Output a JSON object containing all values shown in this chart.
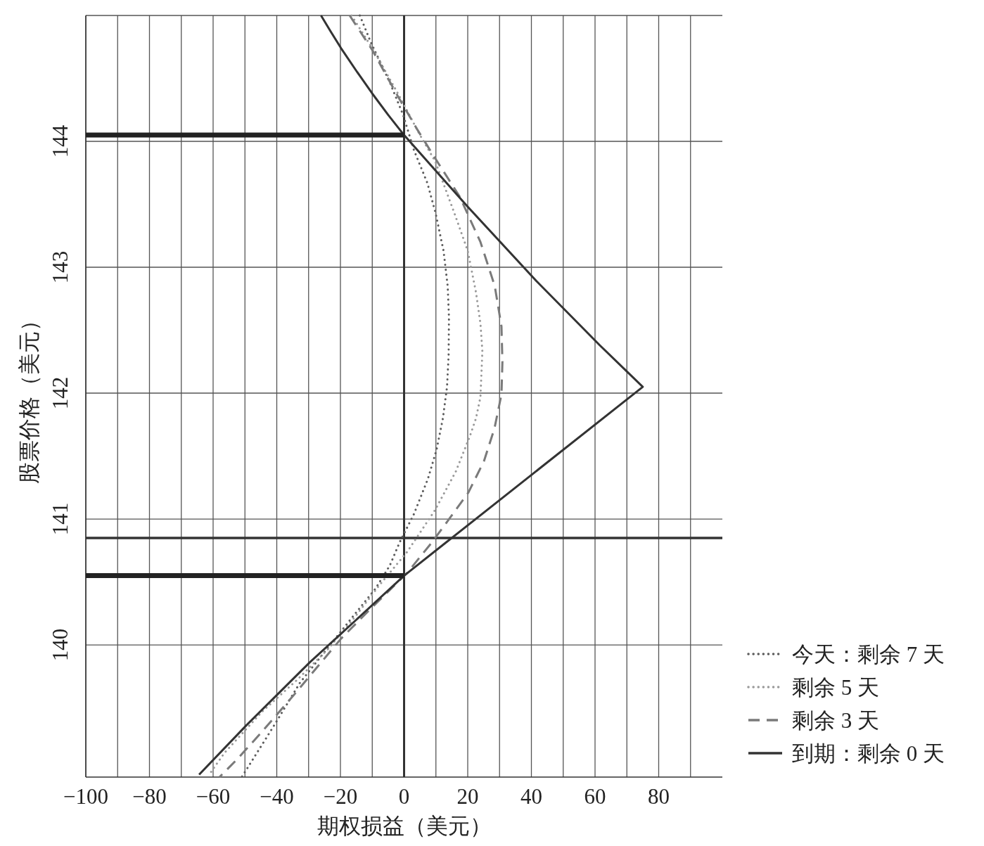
{
  "chart_data": {
    "type": "line",
    "xlabel": "期权损益（美元）",
    "ylabel": "股票价格（美元）",
    "xlim": [
      -100,
      100
    ],
    "ylim": [
      138.95,
      145
    ],
    "xticks": [
      -100,
      {
        "value": -90,
        "label": null
      },
      -80,
      {
        "value": -70,
        "label": null
      },
      -60,
      {
        "value": -50,
        "label": null
      },
      -40,
      {
        "value": -30,
        "label": null
      },
      -20,
      {
        "value": -10,
        "label": null
      },
      0,
      {
        "value": 10,
        "label": null
      },
      20,
      {
        "value": 30,
        "label": null
      },
      40,
      {
        "value": 50,
        "label": null
      },
      60,
      {
        "value": 70,
        "label": null
      },
      80,
      {
        "value": 90,
        "label": null
      }
    ],
    "yticks": [
      140,
      141,
      142,
      143,
      144
    ],
    "grid": true,
    "legend": "bottom right",
    "ref_lines": [
      {
        "axis": "x",
        "value": 0,
        "color": "#333333"
      },
      {
        "axis": "y",
        "value": 140.85,
        "color": "#333333"
      }
    ],
    "series": [
      {
        "name": "今天：剩余 7 天",
        "color": "#5c5c5c",
        "line_style": "dotted",
        "x": [
          -13.9,
          -10.5,
          -4.5,
          -0.3,
          3.1,
          7.3,
          9.9,
          12.4,
          13.7,
          14.1,
          14,
          13.5,
          12.2,
          10.2,
          7.5,
          3.1,
          -1.3,
          -4.5,
          -8.9,
          -16.9,
          -24.8,
          -32.7,
          -40.6,
          -51
        ],
        "values": [
          145,
          144.79,
          144.47,
          144.21,
          143.93,
          143.67,
          143.43,
          143.13,
          142.85,
          142.6,
          142.3,
          142.05,
          141.8,
          141.55,
          141.32,
          141.04,
          140.82,
          140.63,
          140.45,
          140.2,
          139.95,
          139.7,
          139.37,
          138.95
        ]
      },
      {
        "name": "剩余 5 天",
        "color": "#9a9a9a",
        "line_style": "dotted",
        "x": [
          -16.5,
          -9.5,
          -1.5,
          5,
          9.8,
          15.8,
          20,
          22.6,
          24,
          24.6,
          24,
          22.6,
          20.7,
          16.3,
          9.7,
          4.7,
          1,
          -7.9,
          -15.5,
          -23.8,
          -33.7,
          -44.6,
          -56.5,
          -61.5
        ],
        "values": [
          145,
          144.72,
          144.36,
          144.05,
          143.84,
          143.43,
          143.13,
          142.8,
          142.55,
          142.33,
          141.97,
          141.8,
          141.66,
          141.38,
          141.07,
          140.88,
          140.74,
          140.47,
          140.22,
          139.97,
          139.72,
          139.47,
          139.14,
          138.96
        ]
      },
      {
        "name": "剩余 3 天",
        "color": "#7a7a7a",
        "line_style": "dashed",
        "x": [
          -17.1,
          -10.1,
          -2,
          4,
          9.9,
          17.5,
          24,
          28.5,
          30.6,
          30.9,
          30.6,
          28.4,
          25.1,
          20.2,
          13,
          8.6,
          0.9,
          -10,
          -19.8,
          -34.7,
          -45,
          -52.5,
          -58
        ],
        "values": [
          145,
          144.73,
          144.36,
          144.1,
          143.86,
          143.56,
          143.2,
          142.85,
          142.53,
          142.25,
          141.99,
          141.72,
          141.46,
          141.21,
          140.96,
          140.81,
          140.57,
          140.3,
          140.05,
          139.6,
          139.3,
          139.09,
          138.95
        ]
      },
      {
        "name": "到期：剩余 0 天",
        "color": "#333333",
        "line_style": "solid",
        "x": [
          -26.1,
          -23,
          -19.8,
          -15,
          -10,
          -5,
          0,
          20,
          41.6,
          61.5,
          75,
          40.5,
          13,
          0,
          -15,
          -29.7,
          -49.6,
          -64.4
        ],
        "values": [
          145,
          144.87,
          144.74,
          144.56,
          144.38,
          144.21,
          144.05,
          143.48,
          142.89,
          142.38,
          142.05,
          141.36,
          140.81,
          140.55,
          140.2,
          139.86,
          139.36,
          138.97
        ]
      },
      {
        "color": "#222222",
        "line_style": "solid",
        "x": [
          -100,
          0
        ],
        "values": [
          144.05,
          144.05
        ]
      },
      {
        "color": "#222222",
        "line_style": "solid",
        "x": [
          -100,
          0
        ],
        "values": [
          140.55,
          140.55
        ]
      }
    ]
  }
}
